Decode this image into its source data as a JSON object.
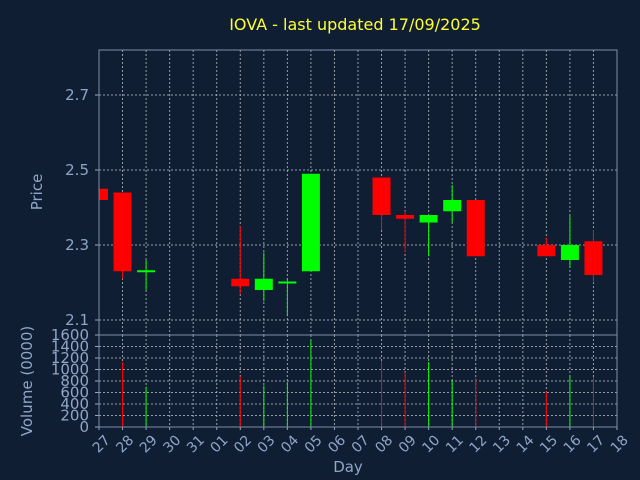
{
  "chart_data": {
    "type": "candlestick",
    "title": "IOVA - last updated 17/09/2025",
    "xlabel": "Day",
    "ylabel": "Price",
    "volume_ylabel": "Volume (0000)",
    "x_ticks": [
      "27",
      "28",
      "29",
      "30",
      "31",
      "01",
      "02",
      "03",
      "04",
      "05",
      "06",
      "07",
      "08",
      "09",
      "10",
      "11",
      "12",
      "13",
      "14",
      "15",
      "16",
      "17",
      "18"
    ],
    "y_ticks": [
      2.1,
      2.3,
      2.5,
      2.7
    ],
    "ylim": [
      2.06,
      2.82
    ],
    "volume_ticks": [
      0,
      200,
      400,
      600,
      800,
      1000,
      1200,
      1400,
      1600
    ],
    "volume_ylim": [
      0,
      1600
    ],
    "grid": true,
    "up_color": "#00ff00",
    "down_color": "#ff0000",
    "candles": [
      {
        "day": "27",
        "open": 2.45,
        "high": 2.45,
        "low": 2.42,
        "close": 2.42,
        "volume": 0
      },
      {
        "day": "28",
        "open": 2.44,
        "high": 2.44,
        "low": 2.21,
        "close": 2.23,
        "volume": 1130
      },
      {
        "day": "29",
        "open": 2.23,
        "high": 2.26,
        "low": 2.18,
        "close": 2.23,
        "volume": 700
      },
      {
        "day": "02",
        "open": 2.21,
        "high": 2.35,
        "low": 2.17,
        "close": 2.19,
        "volume": 880
      },
      {
        "day": "03",
        "open": 2.18,
        "high": 2.28,
        "low": 2.15,
        "close": 2.21,
        "volume": 720
      },
      {
        "day": "04",
        "open": 2.2,
        "high": 2.21,
        "low": 2.11,
        "close": 2.2,
        "volume": 780
      },
      {
        "day": "05",
        "open": 2.23,
        "high": 2.49,
        "low": 2.23,
        "close": 2.49,
        "volume": 1520
      },
      {
        "day": "08",
        "open": 2.48,
        "high": 2.48,
        "low": 2.34,
        "close": 2.38,
        "volume": 1150
      },
      {
        "day": "09",
        "open": 2.38,
        "high": 2.39,
        "low": 2.28,
        "close": 2.37,
        "volume": 950
      },
      {
        "day": "10",
        "open": 2.36,
        "high": 2.38,
        "low": 2.27,
        "close": 2.38,
        "volume": 1130
      },
      {
        "day": "11",
        "open": 2.39,
        "high": 2.46,
        "low": 2.36,
        "close": 2.42,
        "volume": 800
      },
      {
        "day": "12",
        "open": 2.42,
        "high": 2.42,
        "low": 2.27,
        "close": 2.27,
        "volume": 850
      },
      {
        "day": "15",
        "open": 2.3,
        "high": 2.32,
        "low": 2.27,
        "close": 2.27,
        "volume": 620
      },
      {
        "day": "16",
        "open": 2.26,
        "high": 2.38,
        "low": 2.24,
        "close": 2.3,
        "volume": 900
      },
      {
        "day": "17",
        "open": 2.31,
        "high": 2.34,
        "low": 2.2,
        "close": 2.22,
        "volume": 870
      }
    ]
  }
}
